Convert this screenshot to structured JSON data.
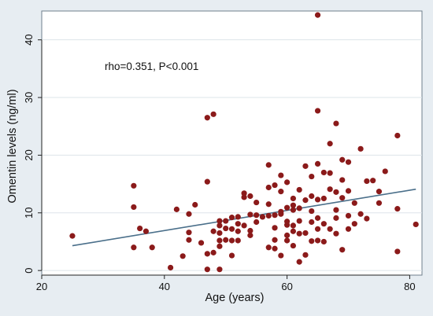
{
  "chart_data": {
    "type": "scatter",
    "xlabel": "Age (years)",
    "ylabel": "Omentin levels  (ng/ml)",
    "annotation": "rho=0.351, P<0.001",
    "xlim": [
      20,
      82
    ],
    "ylim": [
      -0.8,
      45
    ],
    "xticks": [
      20,
      40,
      60,
      80
    ],
    "yticks": [
      0,
      10,
      20,
      30,
      40
    ],
    "grid": "horizontal",
    "colors": {
      "point": "#8b1a1a",
      "fit_line": "#4a6f8a",
      "outer_background": "#e7edf2",
      "plot_background": "#ffffff",
      "axis": "#222222",
      "text": "#111111"
    },
    "series": [
      {
        "marker": "circle",
        "x": [
          25,
          35,
          35,
          35,
          36,
          37,
          38,
          41,
          42,
          43,
          44,
          44,
          44,
          45,
          46,
          47,
          47,
          47,
          47,
          48,
          48,
          48,
          49,
          49,
          49,
          49,
          49,
          49,
          50,
          50,
          50,
          51,
          51,
          51,
          51,
          52,
          52,
          52,
          52,
          53,
          53,
          53,
          54,
          54,
          54,
          54,
          55,
          55,
          55,
          56,
          57,
          57,
          57,
          57,
          57,
          58,
          58,
          58,
          58,
          58,
          59,
          59,
          59,
          59,
          59,
          60,
          60,
          60,
          60,
          60,
          60,
          61,
          61,
          61,
          61,
          61,
          61,
          62,
          62,
          62,
          62,
          62,
          63,
          63,
          63,
          63,
          64,
          64,
          64,
          64,
          64,
          65,
          65,
          65,
          65,
          65,
          65,
          65,
          66,
          66,
          66,
          66,
          67,
          67,
          67,
          67,
          68,
          68,
          68,
          68,
          68,
          69,
          69,
          69,
          69,
          70,
          70,
          70,
          70,
          71,
          71,
          72,
          72,
          73,
          73,
          74,
          75,
          75,
          76,
          78,
          78,
          78,
          81
        ],
        "y": [
          6,
          14.7,
          11,
          4,
          7.3,
          6.8,
          4,
          0.5,
          10.6,
          2.5,
          9.8,
          5.3,
          6.6,
          11.4,
          4.8,
          26.5,
          15.4,
          0.2,
          2.9,
          27.1,
          6.8,
          3.1,
          8.6,
          7.8,
          6.5,
          4.2,
          5.2,
          0.2,
          8.6,
          5.3,
          7.3,
          5.2,
          9.2,
          2.6,
          7.2,
          5.2,
          9.3,
          6.8,
          8.1,
          12.7,
          13.4,
          7.8,
          12.9,
          9.7,
          6.9,
          6.1,
          11.8,
          9.6,
          8.4,
          9.3,
          18.3,
          14.4,
          11.5,
          9.5,
          4,
          14.8,
          9.6,
          3.8,
          7.4,
          5.3,
          16.5,
          13.7,
          9.8,
          10.2,
          2.6,
          15.3,
          10.9,
          7.9,
          6.1,
          5.2,
          8.5,
          11.3,
          12.5,
          7.8,
          10.5,
          6.8,
          4.3,
          14,
          10.8,
          8.6,
          6.4,
          1.5,
          18.1,
          12.2,
          6.5,
          2.7,
          16.3,
          12.9,
          10.3,
          8.4,
          5.1,
          44.3,
          27.7,
          18.5,
          12.3,
          9.1,
          7.2,
          5.2,
          17,
          12.5,
          8.1,
          5,
          22,
          16.9,
          14.1,
          7.2,
          25.5,
          13.6,
          10.5,
          9.1,
          6.4,
          19.2,
          15.7,
          12.6,
          3.6,
          18.8,
          13.8,
          9.5,
          7.2,
          11.7,
          8.1,
          21.1,
          9.8,
          15.5,
          9,
          15.6,
          13.7,
          11.7,
          17.2,
          23.4,
          10.7,
          3.3,
          8
        ]
      }
    ],
    "fit_line": {
      "x": [
        25,
        81
      ],
      "y": [
        4.3,
        14.1
      ]
    }
  }
}
